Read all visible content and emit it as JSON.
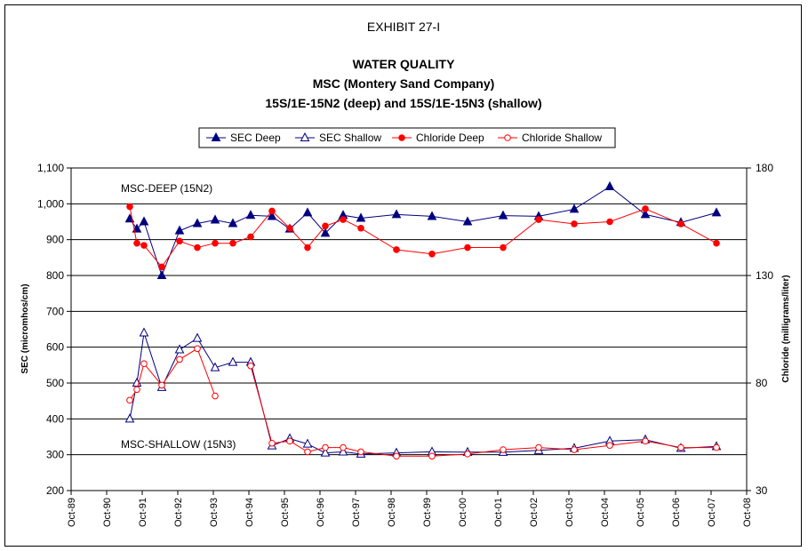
{
  "chart_data": {
    "type": "line",
    "exhibit": "EXHIBIT 27-I",
    "title": "WATER QUALITY",
    "subtitle1": "MSC (Montery Sand Company)",
    "subtitle2": "15S/1E-15N2 (deep) and 15S/1E-15N3 (shallow)",
    "ylabel_left": "SEC (micromhos/cm)",
    "ylabel_right": "Chloride (milligrams/liter)",
    "ylim_left": [
      200,
      1100
    ],
    "ylim_right": [
      30,
      180
    ],
    "yticks_left": [
      "200",
      "300",
      "400",
      "500",
      "600",
      "700",
      "800",
      "900",
      "1,000",
      "1,100"
    ],
    "yticks_right": [
      "30",
      "80",
      "130",
      "180"
    ],
    "x_tick_labels": [
      "Oct-89",
      "Oct-90",
      "Oct-91",
      "Oct-92",
      "Oct-93",
      "Oct-94",
      "Oct-95",
      "Oct-96",
      "Oct-97",
      "Oct-98",
      "Oct-99",
      "Oct-00",
      "Oct-01",
      "Oct-02",
      "Oct-03",
      "Oct-04",
      "Oct-05",
      "Oct-06",
      "Oct-07",
      "Oct-08"
    ],
    "legend_position": "top-center",
    "grid": "horizontal",
    "annotations": [
      "MSC-DEEP (15N2)",
      "MSC-SHALLOW (15N3)"
    ],
    "series": [
      {
        "name": "SEC Deep",
        "axis": "left",
        "color": "#000080",
        "marker": "triangle-filled",
        "points": [
          [
            1991.4,
            958
          ],
          [
            1991.6,
            930
          ],
          [
            1991.8,
            950
          ],
          [
            1992.3,
            800
          ],
          [
            1992.8,
            925
          ],
          [
            1993.3,
            945
          ],
          [
            1993.8,
            955
          ],
          [
            1994.3,
            945
          ],
          [
            1994.8,
            968
          ],
          [
            1995.4,
            965
          ],
          [
            1995.9,
            930
          ],
          [
            1996.4,
            975
          ],
          [
            1996.9,
            918
          ],
          [
            1997.4,
            968
          ],
          [
            1997.9,
            960
          ],
          [
            1998.9,
            970
          ],
          [
            1999.9,
            965
          ],
          [
            2000.9,
            950
          ],
          [
            2001.9,
            967
          ],
          [
            2002.9,
            965
          ],
          [
            2003.9,
            985
          ],
          [
            2004.9,
            1048
          ],
          [
            2005.9,
            970
          ],
          [
            2006.9,
            948
          ],
          [
            2007.9,
            975
          ]
        ]
      },
      {
        "name": "SEC Shallow",
        "axis": "left",
        "color": "#000080",
        "marker": "triangle-open",
        "points": [
          [
            1991.4,
            400
          ],
          [
            1991.6,
            500
          ],
          [
            1991.8,
            640
          ],
          [
            1992.3,
            488
          ],
          [
            1992.8,
            593
          ],
          [
            1993.3,
            625
          ],
          [
            1993.8,
            543
          ],
          [
            1994.3,
            558
          ],
          [
            1994.8,
            558
          ],
          [
            1995.4,
            325
          ],
          [
            1995.9,
            345
          ],
          [
            1996.4,
            330
          ],
          [
            1996.9,
            305
          ],
          [
            1997.4,
            308
          ],
          [
            1997.9,
            302
          ],
          [
            1998.9,
            305
          ],
          [
            1999.9,
            308
          ],
          [
            2000.9,
            307
          ],
          [
            2001.9,
            307
          ],
          [
            2002.9,
            312
          ],
          [
            2003.9,
            318
          ],
          [
            2004.9,
            338
          ],
          [
            2005.9,
            342
          ],
          [
            2006.9,
            318
          ],
          [
            2007.9,
            323
          ]
        ]
      },
      {
        "name": "Chloride Deep",
        "axis": "right",
        "color": "#ff0000",
        "marker": "circle-filled",
        "points": [
          [
            1991.4,
            162
          ],
          [
            1991.6,
            145
          ],
          [
            1991.8,
            144
          ],
          [
            1992.3,
            134
          ],
          [
            1992.8,
            146
          ],
          [
            1993.3,
            143
          ],
          [
            1993.8,
            145
          ],
          [
            1994.3,
            145
          ],
          [
            1994.8,
            148
          ],
          [
            1995.4,
            160
          ],
          [
            1995.9,
            152
          ],
          [
            1996.4,
            143
          ],
          [
            1996.9,
            153
          ],
          [
            1997.4,
            156
          ],
          [
            1997.9,
            152
          ],
          [
            1998.9,
            142
          ],
          [
            1999.9,
            140
          ],
          [
            2000.9,
            143
          ],
          [
            2001.9,
            143
          ],
          [
            2002.9,
            156
          ],
          [
            2003.9,
            154
          ],
          [
            2004.9,
            155
          ],
          [
            2005.9,
            161
          ],
          [
            2006.9,
            154
          ],
          [
            2007.9,
            145
          ]
        ]
      },
      {
        "name": "Chloride Shallow",
        "axis": "right",
        "color": "#ff0000",
        "marker": "circle-open",
        "points": [
          [
            1991.4,
            72
          ],
          [
            1991.6,
            77
          ],
          [
            1991.8,
            89
          ],
          [
            1992.3,
            79
          ],
          [
            1992.8,
            91
          ],
          [
            1993.3,
            96
          ],
          [
            1993.8,
            74
          ]
        ],
        "points_late": [
          [
            1994.8,
            88
          ],
          [
            1995.4,
            52
          ],
          [
            1995.9,
            53
          ],
          [
            1996.4,
            48
          ],
          [
            1996.9,
            50
          ],
          [
            1997.4,
            50
          ],
          [
            1997.9,
            48
          ],
          [
            1998.9,
            46
          ],
          [
            1999.9,
            46
          ],
          [
            2000.9,
            47
          ],
          [
            2001.9,
            49
          ],
          [
            2002.9,
            50
          ],
          [
            2003.9,
            49
          ],
          [
            2004.9,
            51
          ],
          [
            2005.9,
            53
          ],
          [
            2006.9,
            50
          ],
          [
            2007.9,
            50
          ]
        ]
      }
    ]
  }
}
